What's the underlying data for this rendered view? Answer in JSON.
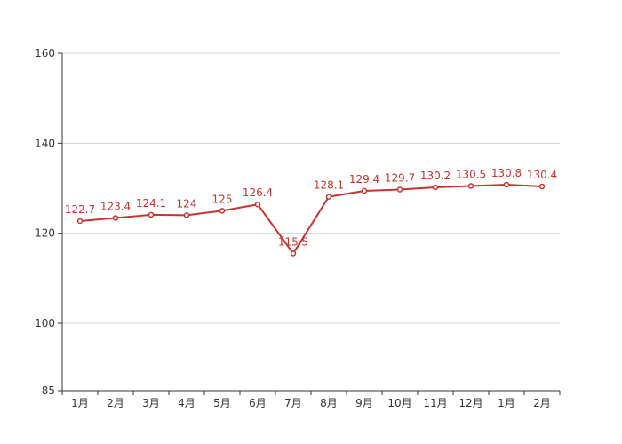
{
  "chart_data": {
    "type": "line",
    "title": "",
    "xlabel": "",
    "ylabel": "",
    "categories": [
      "1月",
      "2月",
      "3月",
      "4月",
      "5月",
      "6月",
      "7月",
      "8月",
      "9月",
      "10月",
      "11月",
      "12月",
      "1月",
      "2月"
    ],
    "series": [
      {
        "values": [
          122.7,
          123.4,
          124.1,
          124,
          125,
          126.4,
          115.5,
          128.1,
          129.4,
          129.7,
          130.2,
          130.5,
          130.8,
          130.4
        ],
        "color": "#c23531"
      }
    ],
    "ylim": [
      85,
      160
    ],
    "yticks": [
      85,
      100,
      120,
      140,
      160
    ],
    "grid": true,
    "legend": "none"
  }
}
